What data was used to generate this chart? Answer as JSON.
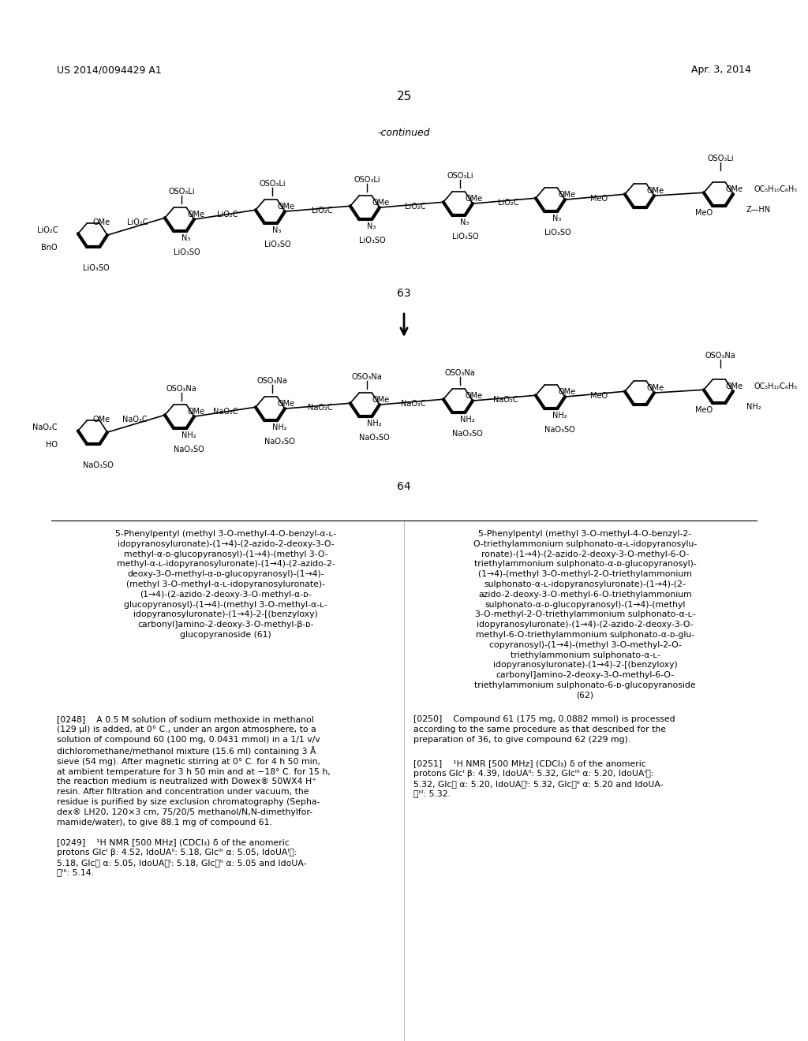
{
  "bg_color": "#ffffff",
  "header_left": "US 2014/0094429 A1",
  "header_right": "Apr. 3, 2014",
  "page_number": "25",
  "continued_label": "-continued",
  "compound_63_label": "63",
  "compound_64_label": "64",
  "col1_title": "5-Phenylpentyl (methyl 3-O-methyl-4-O-benzyl-α-ʟ-\nidopyranosyluronate)-(1→4)-(2-azido-2-deoxy-3-O-\nmethyl-α-ᴅ-glucopyranosyl)-(1→4)-(methyl 3-O-\nmethyl-α-ʟ-idopyranosyluronate)-(1→4)-(2-azido-2-\ndeoxy-3-O-methyl-α-ᴅ-glucopyranosyl)-(1→4)-\n(methyl 3-O-methyl-α-ʟ-idopyranosyluronate)-\n(1→4)-(2-azido-2-deoxy-3-O-methyl-α-ᴅ-\nglucopyranosyl)-(1→4)-(methyl 3-O-methyl-α-ʟ-\nidopyranosyluronate)-(1→4)-2-[(benzyloxy)\ncarbonyl]amino-2-deoxy-3-O-methyl-β-ᴅ-\nglucopyranoside (61)",
  "col2_title": "5-Phenylpentyl (methyl 3-O-methyl-4-O-benzyl-2-\nO-triethylammonium sulphonato-α-ʟ-idopyranosylu-\nronate)-(1→4)-(2-azido-2-deoxy-3-O-methyl-6-O-\ntriethylammonium sulphonato-α-ᴅ-glucopyranosyl)-\n(1→4)-(methyl 3-O-methyl-2-O-triethylammonium\nsulphonato-α-ʟ-idopyranosyluronate)-(1→4)-(2-\nazido-2-deoxy-3-O-methyl-6-O-triethylammonium\nsulphonato-α-ᴅ-glucopyranosyl)-(1→4)-(methyl\n3-O-methyl-2-O-triethylammonium sulphonato-α-ʟ-\nidopyranosyluronate)-(1→4)-(2-azido-2-deoxy-3-O-\nmethyl-6-O-triethylammonium sulphonato-α-ᴅ-glu-\ncopyranosyl)-(1→4)-(methyl 3-O-methyl-2-O-\ntriethylammonium sulphonato-α-ʟ-\nidopyranosyluronate)-(1→4)-2-[(benzyloxy)\ncarbonyl]amino-2-deoxy-3-O-methyl-6-O-\ntriethylammonium sulphonato-6-ᴅ-glucopyranoside\n(62)",
  "p248_label": "[0248]",
  "p248_body": "A 0.5 M solution of sodium methoxide in methanol\n(129 μl) is added, at 0° C., under an argon atmosphere, to a\nsolution of compound 60 (100 mg, 0.0431 mmol) in a 1/1 v/v\ndichloromethane/methanol mixture (15.6 ml) containing 3 Å\nsieve (54 mg). After magnetic stirring at 0° C. for 4 h 50 min,\nat ambient temperature for 3 h 50 min and at −18° C. for 15 h,\nthe reaction medium is neutralized with Dowex® 50WX4 H⁺\nresin. After filtration and concentration under vacuum, the\nresidue is purified by size exclusion chromatography (Sepha-\ndex® LH20, 120×3 cm, 75/20/5 methanol/N,N-dimethylfor-\nmamide/water), to give 88.1 mg of compound 61.",
  "p249_label": "[0249]",
  "p249_body": "¹H NMR [500 MHz] (CDCl₃) δ of the anomeric\nprotons Glcᴵ β: 4.52, IdoUAᴵᴵ: 5.18, Glcᴵᴵᴵ α: 5.05, IdoUAᴵᵜ:\n5.18, Glcᵜ α: 5.05, IdoUAᵜᴵ: 5.18, Glcᵜᴵᴵ α: 5.05 and IdoUA-\nᵜᴵᴵᴵ: 5.14.",
  "p250_label": "[0250]",
  "p250_body": "Compound 61 (175 mg, 0.0882 mmol) is processed\naccording to the same procedure as that described for the\npreparation of 36, to give compound 62 (229 mg).",
  "p251_label": "[0251]",
  "p251_body": "¹H NMR [500 MHz] (CDCl₃) δ of the anomeric\nprotons Glcᴵ β: 4.39, IdoUAᴵᴵ: 5.32, Glcᴵᴵᴵ α: 5.20, IdoUAᴵᵜ:\n5.32, Glcᵜ α: 5.20, IdoUAᵜᴵ: 5.32, Glcᵜᴵᴵ α: 5.20 and IdoUA-\nᵜᴵᴵᴵ: 5.32."
}
